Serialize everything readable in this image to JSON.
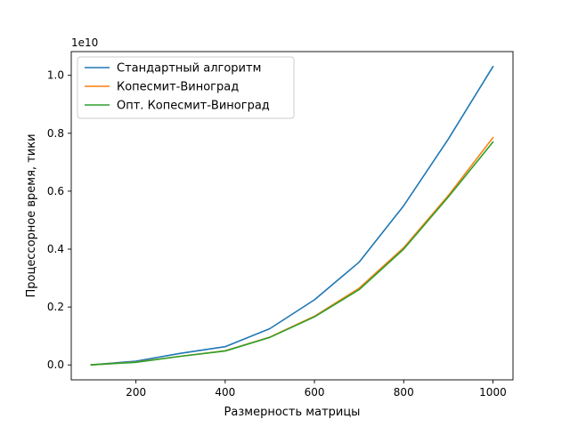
{
  "chart_data": {
    "type": "line",
    "x": [
      100,
      200,
      300,
      400,
      500,
      600,
      700,
      800,
      900,
      1000
    ],
    "series": [
      {
        "name": "Стандартный алгоритм",
        "color": "#1f77b4",
        "values": [
          0.005,
          0.13,
          0.4,
          0.63,
          1.25,
          2.25,
          3.55,
          5.5,
          7.8,
          10.3
        ]
      },
      {
        "name": "Копесмит-Виноград",
        "color": "#ff7f0e",
        "values": [
          0.005,
          0.1,
          0.3,
          0.49,
          0.96,
          1.68,
          2.65,
          4.05,
          5.85,
          7.85
        ]
      },
      {
        "name": "Опт. Копесмит-Виноград",
        "color": "#2ca02c",
        "values": [
          0.005,
          0.09,
          0.3,
          0.48,
          0.95,
          1.66,
          2.6,
          4.0,
          5.8,
          7.7
        ]
      }
    ],
    "xlabel": "Размерность матрицы",
    "ylabel": "Процессорное время, тики",
    "offset_label": "1e10",
    "xlim": [
      55,
      1045
    ],
    "ylim": [
      -0.515,
      10.82
    ],
    "xticks": [
      200,
      400,
      600,
      800,
      1000
    ],
    "xtick_labels": [
      "200",
      "400",
      "600",
      "800",
      "1000"
    ],
    "yticks": [
      0,
      2,
      4,
      6,
      8,
      10
    ],
    "ytick_labels": [
      "0.0",
      "0.2",
      "0.4",
      "0.6",
      "0.8",
      "1.0"
    ],
    "grid": false,
    "legend_position": "top-left"
  }
}
